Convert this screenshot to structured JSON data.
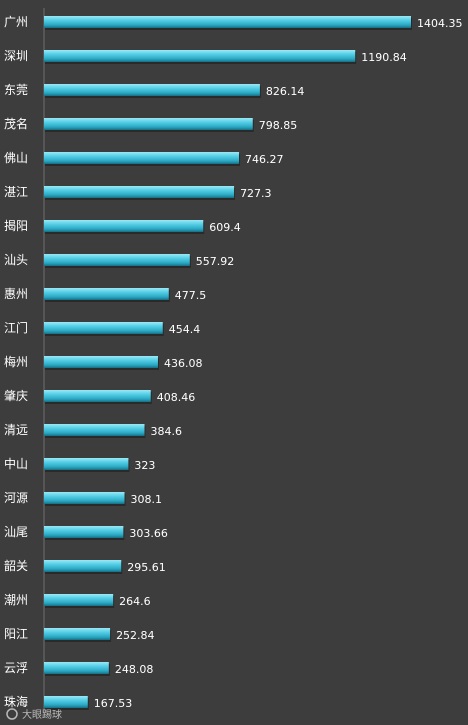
{
  "chart_data": {
    "type": "bar",
    "orientation": "horizontal",
    "title": "",
    "xlabel": "",
    "ylabel": "",
    "categories": [
      "广州",
      "深圳",
      "东莞",
      "茂名",
      "佛山",
      "湛江",
      "揭阳",
      "汕头",
      "惠州",
      "江门",
      "梅州",
      "肇庆",
      "清远",
      "中山",
      "河源",
      "汕尾",
      "韶关",
      "潮州",
      "阳江",
      "云浮",
      "珠海"
    ],
    "values": [
      1404.35,
      1190.84,
      826.14,
      798.85,
      746.27,
      727.3,
      609.4,
      557.92,
      477.5,
      454.4,
      436.08,
      408.46,
      384.6,
      323,
      308.1,
      303.66,
      295.61,
      264.6,
      252.84,
      248.08,
      167.53
    ],
    "value_labels": [
      "1404.35",
      "1190.84",
      "826.14",
      "798.85",
      "746.27",
      "727.3",
      "609.4",
      "557.92",
      "477.5",
      "454.4",
      "436.08",
      "408.46",
      "384.6",
      "323",
      "308.1",
      "303.66",
      "295.61",
      "264.6",
      "252.84",
      "248.08",
      "167.53"
    ],
    "xlim": [
      0,
      1404.35
    ],
    "grid": false,
    "legend": "none",
    "colors": {
      "background": "#3d3d3d",
      "bar_light": "#8fe3f2",
      "bar_mid": "#3fc2dc",
      "bar_dark": "#1b7f97",
      "text": "#ffffff"
    }
  },
  "watermark": "大眼踢球"
}
